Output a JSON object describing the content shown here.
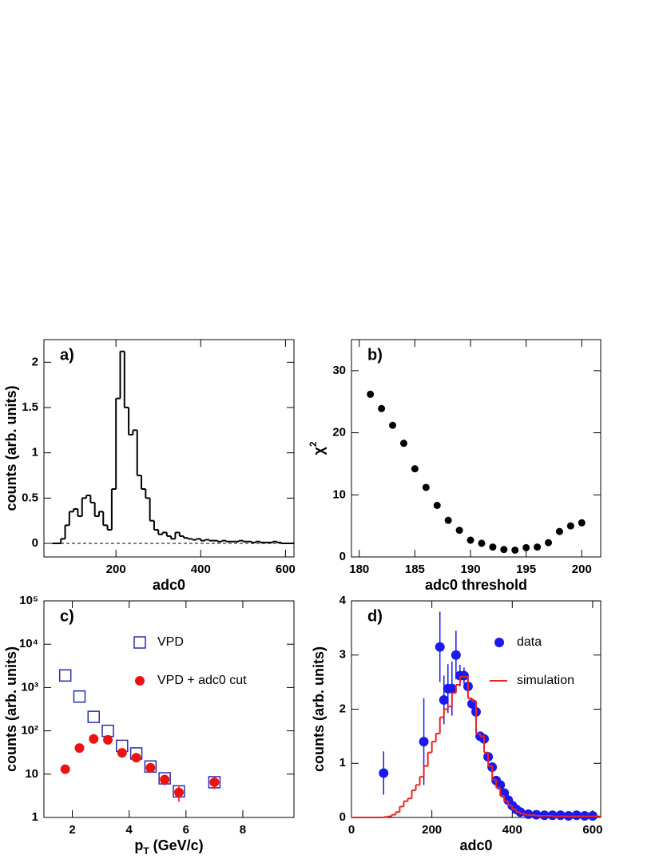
{
  "chart_data": [
    {
      "type": "histogram",
      "label": "a)",
      "x_label": [
        {
          "text": "adc0"
        }
      ],
      "y_label": [
        {
          "text": "counts (arb. units)"
        }
      ],
      "xlim": [
        30,
        620
      ],
      "xticks": [
        200,
        400,
        600
      ],
      "ylim": [
        -0.15,
        2.25
      ],
      "yticks": [
        0,
        0.5,
        1,
        1.5,
        2
      ],
      "zero_line": true,
      "series": [
        {
          "type": "histogram",
          "color": "#000000",
          "bins": [
            50,
            60,
            70,
            80,
            90,
            100,
            110,
            120,
            130,
            140,
            150,
            160,
            170,
            180,
            190,
            200,
            210,
            220,
            230,
            240,
            250,
            260,
            270,
            280,
            290,
            300,
            310,
            320,
            330,
            340,
            350,
            360,
            370,
            380,
            390,
            400,
            410,
            420,
            430,
            440,
            450,
            460,
            470,
            480,
            490,
            500,
            510,
            520,
            530,
            540,
            550,
            560,
            570,
            580,
            590,
            600,
            610,
            620
          ],
          "counts": [
            0,
            0,
            0.05,
            0.2,
            0.35,
            0.38,
            0.3,
            0.5,
            0.53,
            0.45,
            0.3,
            0.35,
            0.2,
            0.15,
            0.6,
            1.6,
            2.12,
            1.5,
            1.2,
            1.25,
            0.75,
            0.6,
            0.5,
            0.25,
            0.15,
            0.1,
            0.12,
            0.08,
            0.05,
            0.12,
            0.08,
            0.06,
            0.05,
            0.04,
            0.05,
            0.03,
            0.04,
            0.03,
            0.03,
            0.02,
            0.03,
            0.02,
            0.02,
            0.02,
            0.03,
            0.02,
            0.02,
            0.01,
            0.02,
            0.01,
            0.01,
            0.01,
            0.02,
            0.01,
            0,
            0,
            0
          ]
        }
      ]
    },
    {
      "type": "scatter",
      "label": "b)",
      "x_label": [
        {
          "text": "adc0 threshold"
        }
      ],
      "y_label": [
        {
          "text": "χ"
        },
        {
          "text": "2",
          "script": "super"
        }
      ],
      "xlim": [
        179.3,
        201.7
      ],
      "xticks": [
        180,
        185,
        190,
        195,
        200
      ],
      "ylim": [
        0,
        35
      ],
      "yticks": [
        0,
        10,
        20,
        30
      ],
      "series": [
        {
          "type": "scatter",
          "marker": "circle",
          "color": "#000000",
          "x": [
            181,
            182,
            183,
            184,
            185,
            186,
            187,
            188,
            189,
            190,
            191,
            192,
            193,
            194,
            195,
            196,
            197,
            198,
            199,
            200
          ],
          "values": [
            26.2,
            23.9,
            21.2,
            18.3,
            14.2,
            11.2,
            8.3,
            5.9,
            4.3,
            2.7,
            2.2,
            1.6,
            1.2,
            1.1,
            1.5,
            1.6,
            2.3,
            4.1,
            5.0,
            5.5
          ]
        }
      ]
    },
    {
      "type": "scatter",
      "label": "c)",
      "x_label": [
        {
          "text": "p"
        },
        {
          "text": "T",
          "script": "sub"
        },
        {
          "text": " (GeV/c)"
        }
      ],
      "y_label": [
        {
          "text": "counts (arb. units)"
        }
      ],
      "xlim": [
        1,
        9.8
      ],
      "xticks": [
        2,
        4,
        6,
        8
      ],
      "ylim": [
        1,
        100000
      ],
      "log_y": true,
      "yticks": [
        1,
        10,
        {
          "value": 100,
          "label": "10²"
        },
        {
          "value": 1000,
          "label": "10³"
        },
        {
          "value": 10000,
          "label": "10⁴"
        },
        {
          "value": 100000,
          "label": "10⁵"
        }
      ],
      "legend": "upper-center",
      "series": [
        {
          "type": "scatter",
          "name": "VPD",
          "marker": "open-square",
          "color": "#2b2bb0",
          "x": [
            1.75,
            2.25,
            2.75,
            3.25,
            3.75,
            4.25,
            4.75,
            5.25,
            5.75,
            7.0
          ],
          "values": [
            1900,
            620,
            210,
            100,
            45,
            30,
            15,
            8,
            4,
            6.5
          ]
        },
        {
          "type": "scatter",
          "name": "VPD + adc0 cut",
          "marker": "circle",
          "color": "#ee1111",
          "x": [
            1.75,
            2.25,
            2.75,
            3.25,
            3.75,
            4.25,
            4.75,
            5.25,
            5.75,
            7.0
          ],
          "values": [
            13,
            40,
            65,
            62,
            31,
            24,
            14,
            7.5,
            3.8,
            6.5
          ],
          "errors": [
            2,
            4,
            6,
            6,
            3,
            3,
            3,
            2,
            1.5,
            2
          ]
        }
      ]
    },
    {
      "type": "scatter",
      "label": "d)",
      "x_label": [
        {
          "text": "adc0"
        }
      ],
      "y_label": [
        {
          "text": "counts (arb. units)"
        }
      ],
      "xlim": [
        0,
        620
      ],
      "xticks": [
        0,
        200,
        400,
        600
      ],
      "ylim": [
        0,
        4
      ],
      "yticks": [
        0,
        1,
        2,
        3,
        4
      ],
      "legend": "upper-right",
      "series": [
        {
          "type": "scatter",
          "name": "data",
          "marker": "circle",
          "color": "#1a1aee",
          "x": [
            80,
            180,
            220,
            230,
            240,
            250,
            260,
            270,
            280,
            290,
            300,
            310,
            320,
            330,
            340,
            350,
            360,
            370,
            380,
            390,
            400,
            410,
            420,
            440,
            460,
            480,
            500,
            520,
            540,
            560,
            580,
            600
          ],
          "values": [
            0.82,
            1.4,
            3.15,
            2.17,
            2.38,
            2.38,
            3.0,
            2.62,
            2.62,
            2.42,
            2.1,
            1.95,
            1.5,
            1.45,
            1.12,
            0.93,
            0.68,
            0.6,
            0.45,
            0.32,
            0.22,
            0.15,
            0.1,
            0.06,
            0.05,
            0.04,
            0.04,
            0.04,
            0.03,
            0.04,
            0.03,
            0.03
          ],
          "errors": [
            0.4,
            0.8,
            0.65,
            0.45,
            0.45,
            0.5,
            0.45,
            0.2,
            0.15,
            0.12,
            0.1,
            0.1,
            0.08,
            0.08,
            0.06,
            0.05,
            0.04,
            0.04,
            0.03,
            0.03,
            0.02,
            0.02,
            0.02,
            0.02,
            0.02,
            0.02,
            0.02,
            0.02,
            0.02,
            0.02,
            0.02,
            0.02
          ]
        },
        {
          "type": "histogram",
          "name": "simulation",
          "color": "#ee2222",
          "bins": [
            0,
            10,
            20,
            30,
            40,
            50,
            60,
            70,
            80,
            90,
            100,
            110,
            120,
            130,
            140,
            150,
            160,
            170,
            180,
            190,
            200,
            210,
            220,
            230,
            240,
            250,
            260,
            270,
            280,
            290,
            300,
            310,
            320,
            330,
            340,
            350,
            360,
            370,
            380,
            390,
            400,
            410,
            420,
            430,
            440,
            450,
            460,
            470,
            480,
            490,
            500,
            510,
            520,
            530,
            540,
            550,
            560,
            570,
            580,
            590,
            600,
            610,
            620
          ],
          "counts": [
            0,
            0,
            0,
            0,
            0,
            0,
            0,
            0,
            0.01,
            0.02,
            0.05,
            0.1,
            0.2,
            0.3,
            0.35,
            0.5,
            0.6,
            0.75,
            0.95,
            1.2,
            1.4,
            1.55,
            1.85,
            2.0,
            2.05,
            2.3,
            2.45,
            2.6,
            2.6,
            2.2,
            2.15,
            1.55,
            1.5,
            1.2,
            0.95,
            0.7,
            0.55,
            0.4,
            0.3,
            0.22,
            0.15,
            0.1,
            0.07,
            0.05,
            0.04,
            0.04,
            0.03,
            0.03,
            0.03,
            0.03,
            0.02,
            0.02,
            0.02,
            0.02,
            0.02,
            0.02,
            0.02,
            0.02,
            0.02,
            0.02,
            0.02,
            0.02
          ]
        }
      ]
    }
  ]
}
